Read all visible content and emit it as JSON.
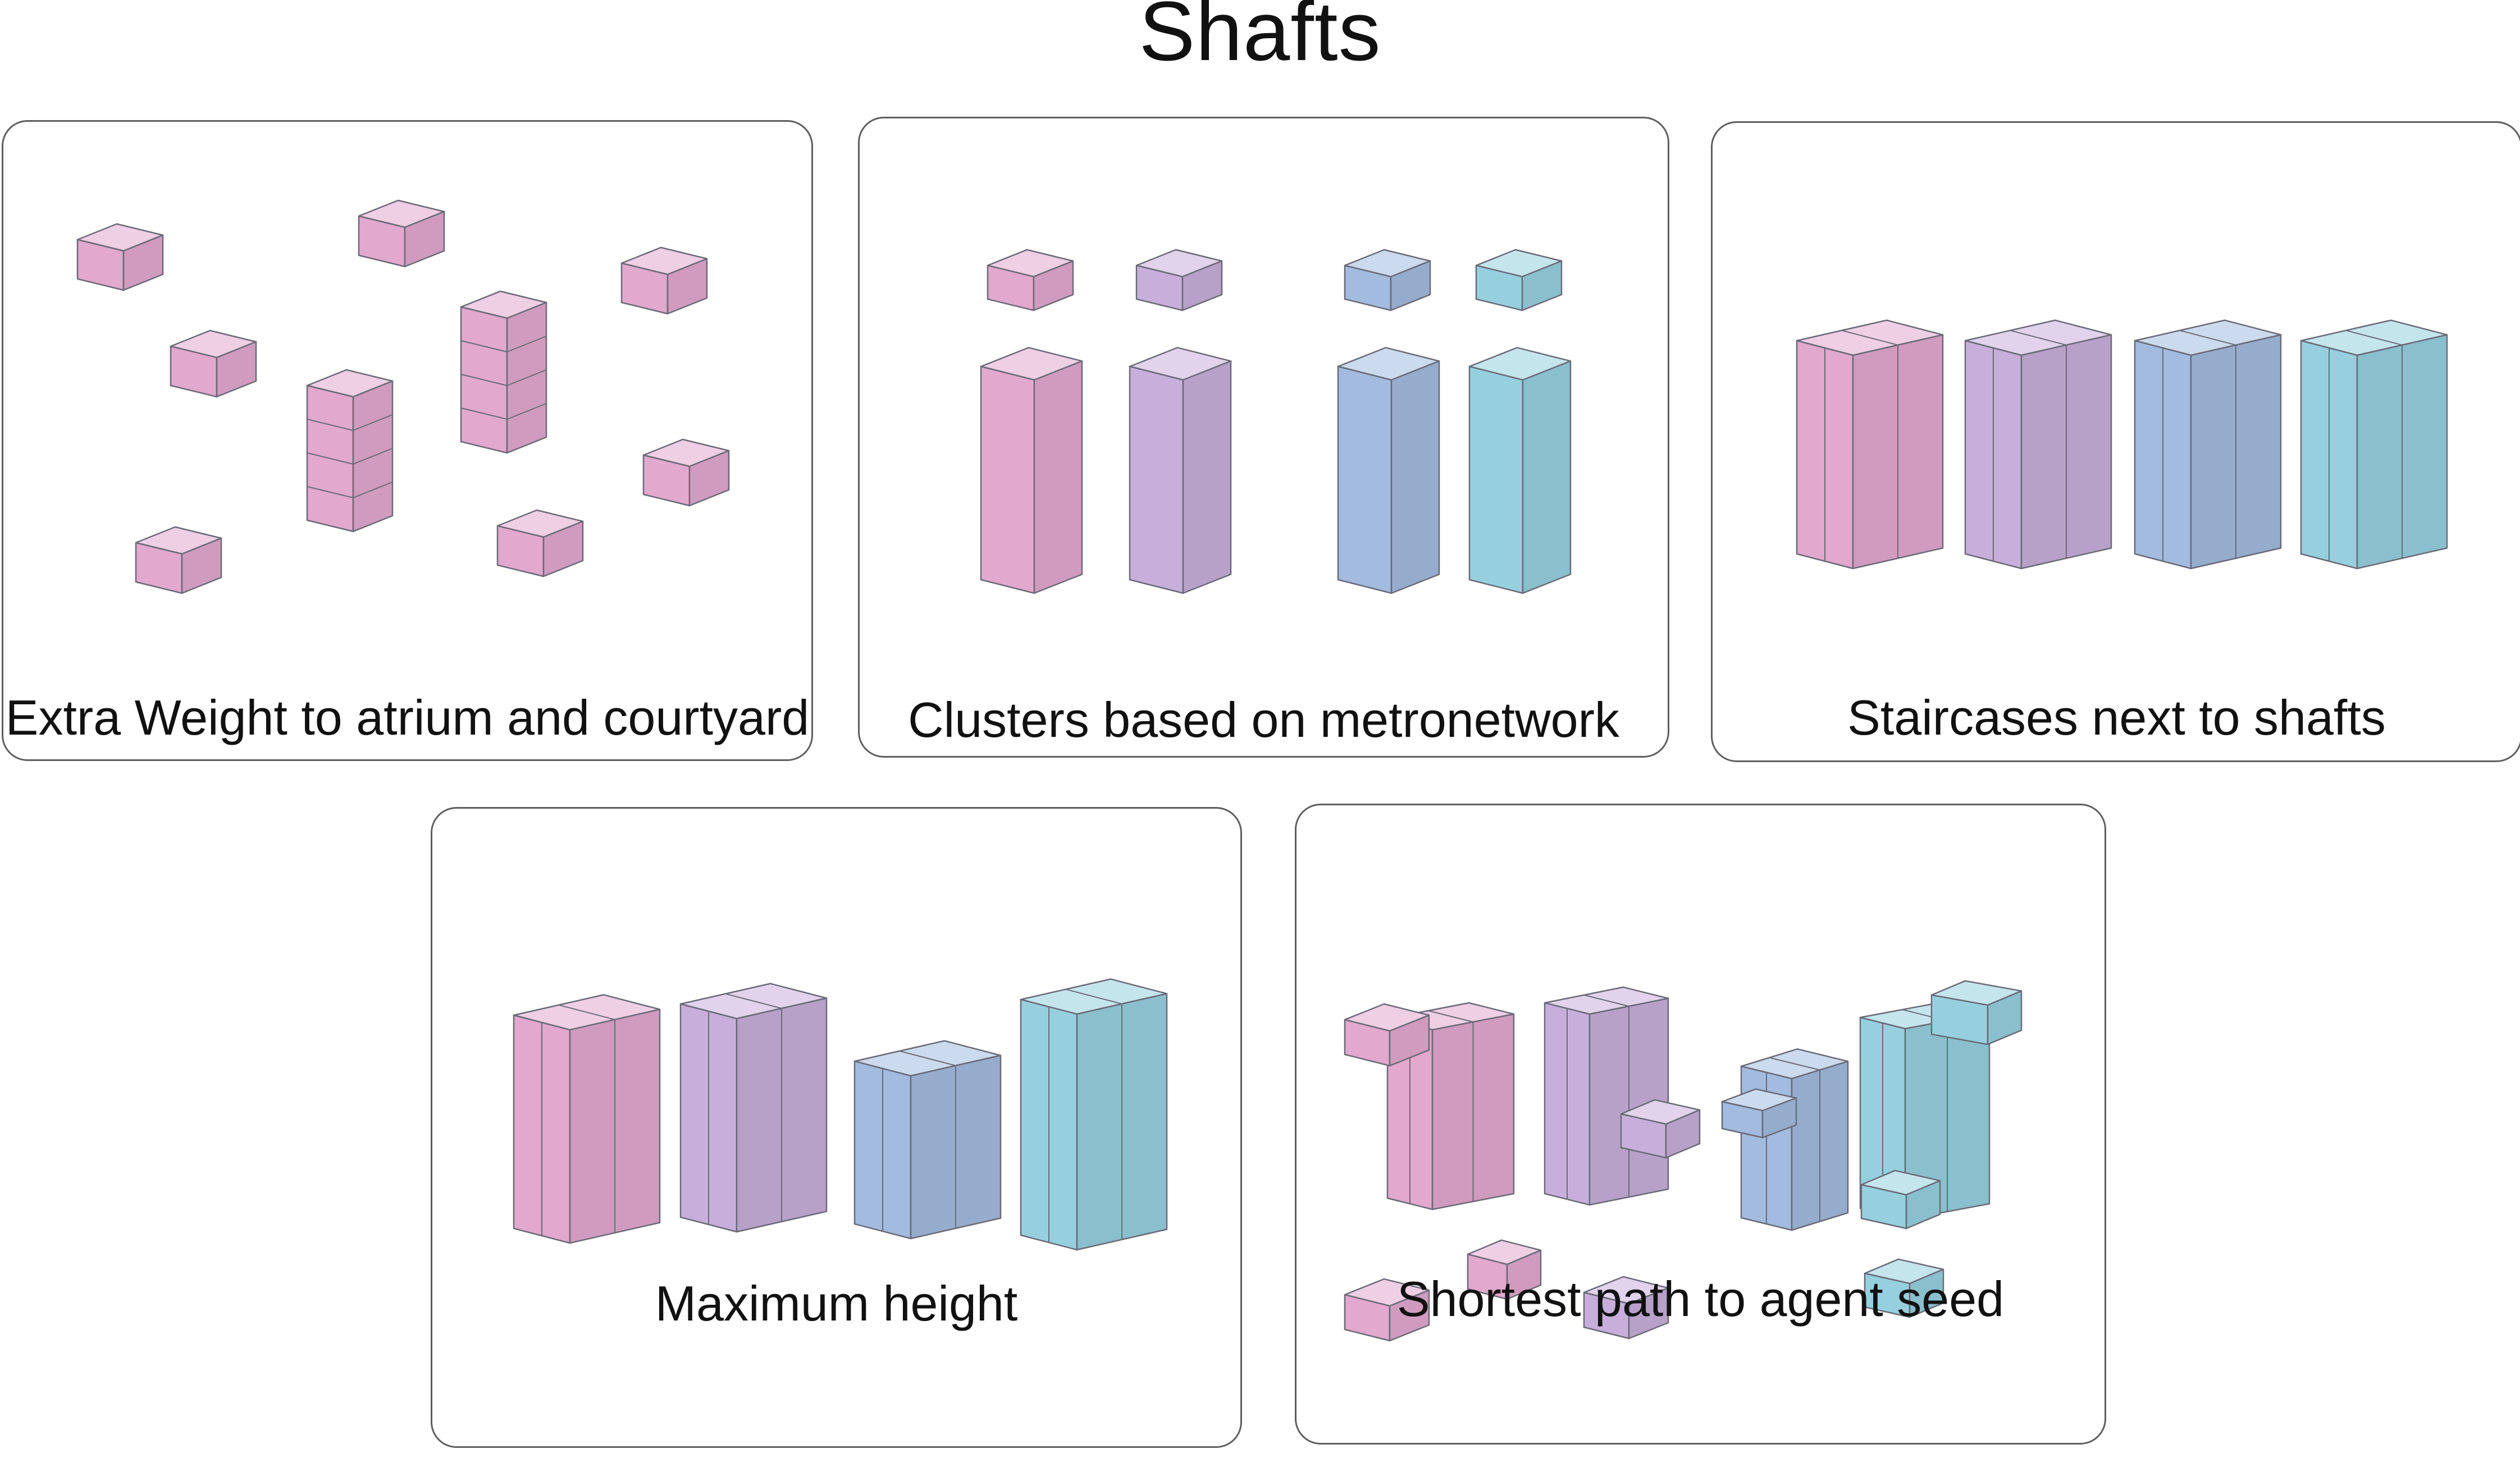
{
  "title": "Shafts",
  "colors": {
    "pink": "#e2a8ce",
    "violet": "#c8afdb",
    "blue": "#a2bbde",
    "cyan": "#96d0df",
    "panel_border": "#5e5e5e"
  },
  "panels": [
    {
      "caption": "Extra Weight to atrium and courtyard"
    },
    {
      "caption": "Clusters based on metronetwork"
    },
    {
      "caption": "Staircases next to shafts"
    },
    {
      "caption": "Maximum height"
    },
    {
      "caption": "Shortest path to agent seed"
    }
  ]
}
